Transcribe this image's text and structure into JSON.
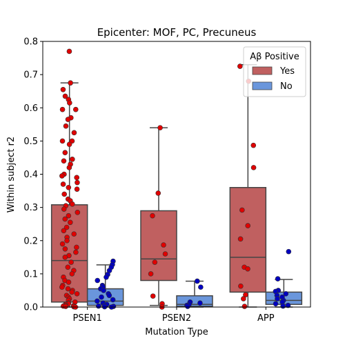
{
  "chart_data": {
    "type": "box",
    "title": "Epicenter: MOF, PC, Precuneus",
    "xlabel": "Mutation Type",
    "ylabel": "Within subject r2",
    "ylim": [
      0,
      0.8
    ],
    "yticks": [
      "0.0",
      "0.1",
      "0.2",
      "0.3",
      "0.4",
      "0.5",
      "0.6",
      "0.7",
      "0.8"
    ],
    "categories": [
      "PSEN1",
      "PSEN2",
      "APP"
    ],
    "legend": {
      "title": "Aβ Positive",
      "position": "upper-right"
    },
    "series": [
      {
        "name": "Yes",
        "box_color": "#c06060",
        "point_color": "#e00000",
        "boxes": [
          {
            "whisker_low": 0.0,
            "q1": 0.015,
            "median": 0.14,
            "q3": 0.308,
            "whisker_high": 0.675
          },
          {
            "whisker_low": 0.005,
            "q1": 0.08,
            "median": 0.145,
            "q3": 0.29,
            "whisker_high": 0.54
          },
          {
            "whisker_low": 0.0,
            "q1": 0.045,
            "median": 0.15,
            "q3": 0.36,
            "whisker_high": 0.73
          }
        ],
        "points": [
          [
            0.77,
            0.675,
            0.655,
            0.635,
            0.625,
            0.615,
            0.595,
            0.595,
            0.57,
            0.565,
            0.545,
            0.525,
            0.5,
            0.5,
            0.49,
            0.465,
            0.445,
            0.44,
            0.43,
            0.42,
            0.4,
            0.395,
            0.39,
            0.375,
            0.37,
            0.36,
            0.355,
            0.34,
            0.325,
            0.32,
            0.31,
            0.305,
            0.295,
            0.285,
            0.275,
            0.265,
            0.255,
            0.24,
            0.23,
            0.22,
            0.21,
            0.2,
            0.19,
            0.18,
            0.175,
            0.165,
            0.155,
            0.15,
            0.135,
            0.12,
            0.11,
            0.1,
            0.09,
            0.08,
            0.075,
            0.065,
            0.06,
            0.055,
            0.05,
            0.045,
            0.04,
            0.035,
            0.03,
            0.025,
            0.02,
            0.015,
            0.012,
            0.01,
            0.008,
            0.005,
            0.004,
            0.003,
            0.002,
            0.001,
            0.0
          ],
          [
            0.54,
            0.343,
            0.275,
            0.187,
            0.16,
            0.135,
            0.1,
            0.033,
            0.01,
            0.0
          ],
          [
            0.725,
            0.68,
            0.487,
            0.42,
            0.292,
            0.245,
            0.205,
            0.12,
            0.115,
            0.063,
            0.037,
            0.025,
            0.002
          ]
        ]
      },
      {
        "name": "No",
        "box_color": "#6a96dc",
        "point_color": "#0000c0",
        "boxes": [
          {
            "whisker_low": 0.0,
            "q1": 0.005,
            "median": 0.018,
            "q3": 0.055,
            "whisker_high": 0.127
          },
          {
            "whisker_low": 0.0,
            "q1": 0.002,
            "median": 0.008,
            "q3": 0.034,
            "whisker_high": 0.078
          },
          {
            "whisker_low": 0.0,
            "q1": 0.008,
            "median": 0.02,
            "q3": 0.045,
            "whisker_high": 0.083
          }
        ],
        "points": [
          [
            0.138,
            0.128,
            0.12,
            0.11,
            0.098,
            0.09,
            0.08,
            0.065,
            0.06,
            0.055,
            0.05,
            0.04,
            0.035,
            0.03,
            0.022,
            0.018,
            0.012,
            0.008,
            0.005,
            0.003,
            0.002,
            0.001,
            0.0
          ],
          [
            0.078,
            0.06,
            0.015,
            0.012,
            0.008,
            0.005,
            0.002
          ],
          [
            0.167,
            0.085,
            0.05,
            0.047,
            0.04,
            0.035,
            0.03,
            0.025,
            0.02,
            0.015,
            0.01,
            0.005,
            0.003
          ]
        ]
      }
    ]
  }
}
